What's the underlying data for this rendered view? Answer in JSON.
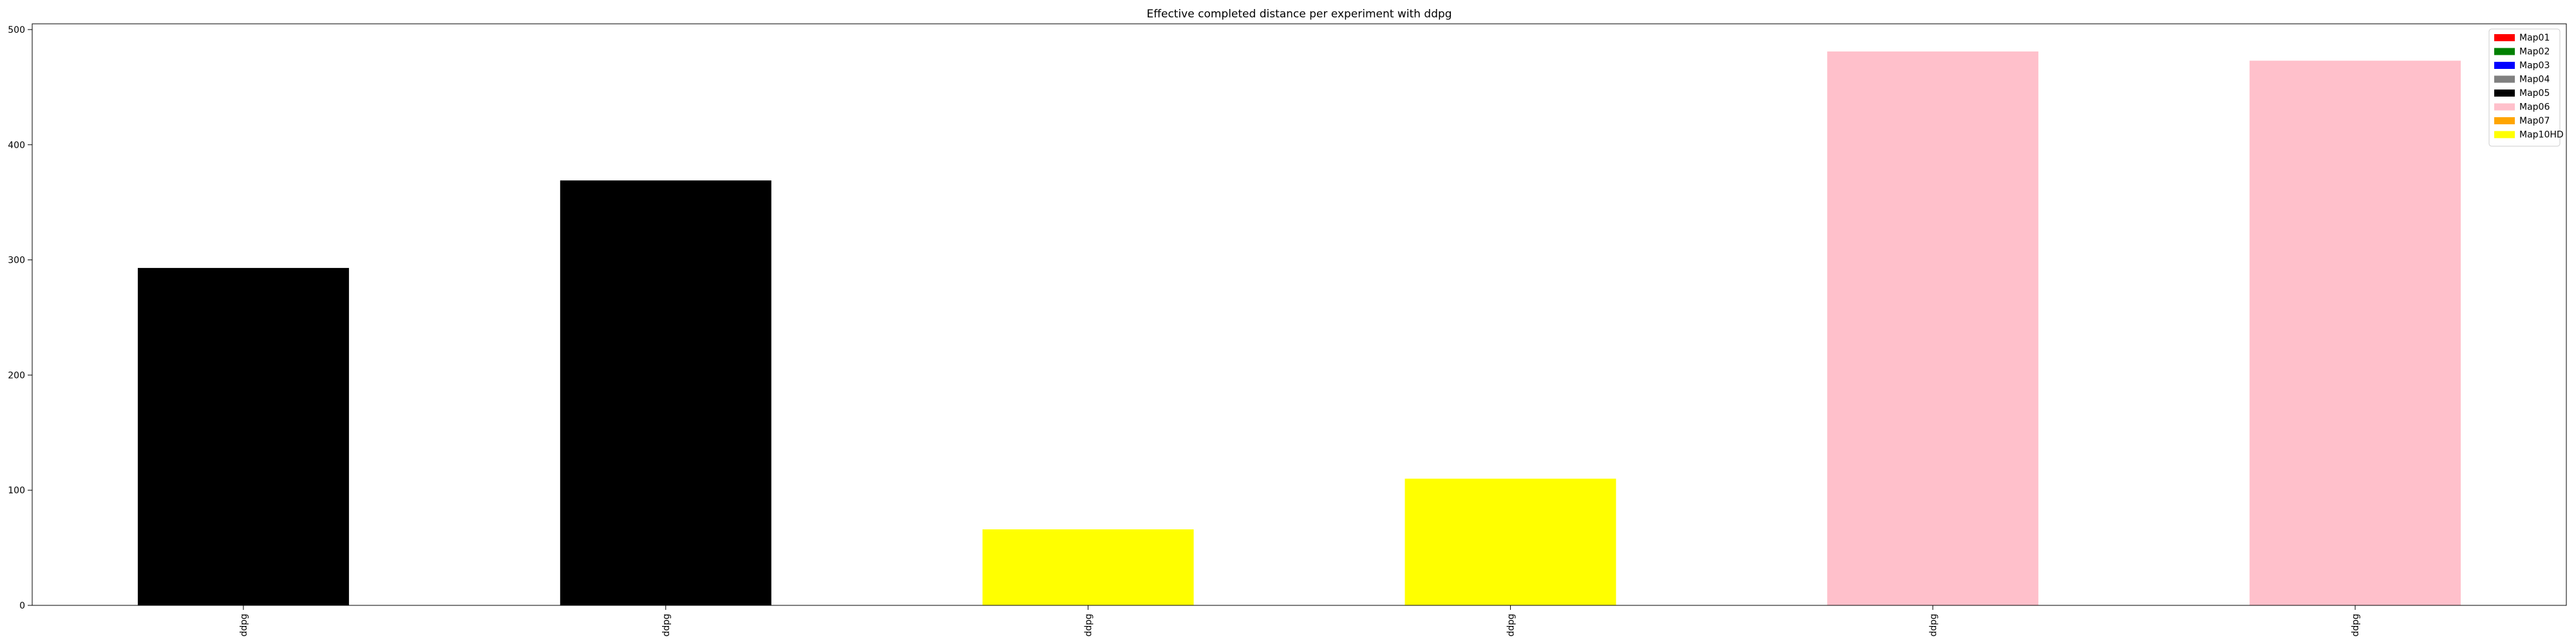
{
  "chart_data": {
    "type": "bar",
    "title": "Effective completed distance per experiment with ddpg",
    "xlabel": "",
    "ylabel": "",
    "categories": [
      "ddpg",
      "ddpg",
      "ddpg",
      "ddpg",
      "ddpg",
      "ddpg"
    ],
    "values": [
      293,
      369,
      66,
      110,
      481,
      473
    ],
    "bar_maps": [
      "Map05",
      "Map05",
      "Map10HD",
      "Map10HD",
      "Map06",
      "Map06"
    ],
    "ylim": [
      0,
      505
    ],
    "yticks": [
      0,
      100,
      200,
      300,
      400,
      500
    ],
    "grid": false,
    "legend": {
      "placement": "top-right",
      "entries": [
        {
          "label": "Map01",
          "color": "#ff0000"
        },
        {
          "label": "Map02",
          "color": "#008000"
        },
        {
          "label": "Map03",
          "color": "#0000ff"
        },
        {
          "label": "Map04",
          "color": "#808080"
        },
        {
          "label": "Map05",
          "color": "#000000"
        },
        {
          "label": "Map06",
          "color": "#ffc0cb"
        },
        {
          "label": "Map07",
          "color": "#ffa500"
        },
        {
          "label": "Map10HD",
          "color": "#ffff00"
        }
      ]
    }
  }
}
